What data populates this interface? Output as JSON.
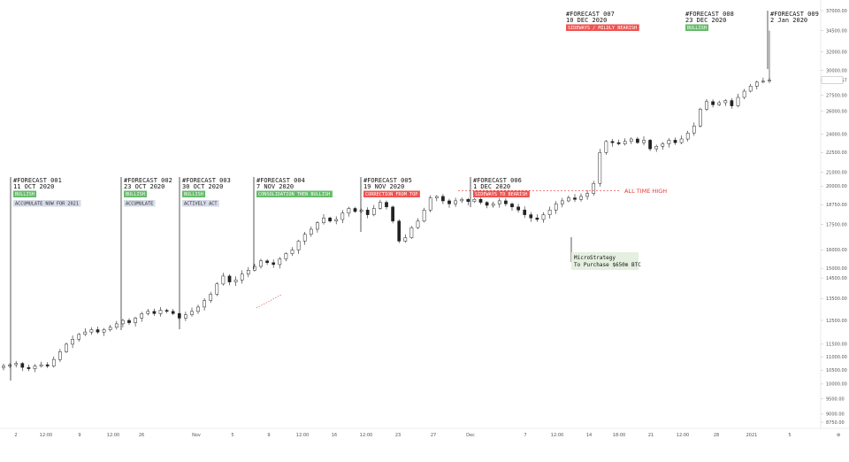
{
  "chart_data": {
    "type": "candlestick",
    "y_scale": "log",
    "y_ticks": [
      "37000.00",
      "34500.00",
      "32000.00",
      "30000.00",
      "29006.57",
      "27500.00",
      "26000.00",
      "24000.00",
      "22500.00",
      "21000.00",
      "20000.00",
      "18750.00",
      "17500.00",
      "16000.00",
      "15000.00",
      "14500.00",
      "13500.00",
      "12500.00",
      "11500.00",
      "11000.00",
      "10500.00",
      "10000.00",
      "9500.00",
      "9000.00",
      "8750.00"
    ],
    "last_price": "29006.57",
    "x_ticks": [
      "2",
      "12:00",
      "9",
      "12:00",
      "26",
      "Nov",
      "5",
      "9",
      "12:00",
      "16",
      "12:00",
      "23",
      "27",
      "Dec",
      "7",
      "12:00",
      "14",
      "18:00",
      "21",
      "12:00",
      "28",
      "2021",
      "5"
    ],
    "annotations": [
      {
        "id": "001",
        "title": "#FORECAST 001",
        "date": "11 OCT 2020",
        "tag": "BULLISH",
        "tag_color": "#66bb6a",
        "note": "ACCUMULATE NOW FOR 2021"
      },
      {
        "id": "002",
        "title": "#FORECAST 002",
        "date": "23 OCT 2020",
        "tag": "BULLISH",
        "tag_color": "#66bb6a",
        "note": "ACCUMULATE"
      },
      {
        "id": "003",
        "title": "#FORECAST 003",
        "date": "30 OCT 2020",
        "tag": "BULLISH",
        "tag_color": "#66bb6a",
        "note": "ACTIVELY ACT"
      },
      {
        "id": "004",
        "title": "#FORECAST 004",
        "date": "7 NOV 2020",
        "tag": "CONSOLIDATION THEN BULLISH",
        "tag_color": "#66bb6a",
        "note": ""
      },
      {
        "id": "005",
        "title": "#FORECAST 005",
        "date": "19 NOV 2020",
        "tag": "CORRECTION FROM TOP",
        "tag_color": "#ef5350",
        "note": ""
      },
      {
        "id": "006",
        "title": "#FORECAST 006",
        "date": "1 DEC 2020",
        "tag": "SIDEWAYS TO BEARISH",
        "tag_color": "#ef5350",
        "note": ""
      },
      {
        "id": "007",
        "title": "#FORECAST 007",
        "date": "10 DEC 2020",
        "tag": "SIDEWAYS / MILDLY BEARISH",
        "tag_color": "#ef5350",
        "note": ""
      },
      {
        "id": "008",
        "title": "#FORECAST 008",
        "date": "23 DEC 2020",
        "tag": "BULLISH",
        "tag_color": "#66bb6a",
        "note": ""
      },
      {
        "id": "009",
        "title": "#FORECAST 009",
        "date": "2 Jan 2020",
        "tag": "",
        "tag_color": "",
        "note": ""
      }
    ],
    "ath_label": "ALL TIME HIGH",
    "callout": {
      "line1": "MicroStrategy",
      "line2": "To Purchase $650m BTC"
    },
    "price_path": [
      [
        0,
        10650
      ],
      [
        1,
        10700
      ],
      [
        2,
        10750
      ],
      [
        3,
        10600
      ],
      [
        4,
        10550
      ],
      [
        5,
        10650
      ],
      [
        6,
        10700
      ],
      [
        7,
        10650
      ],
      [
        8,
        10900
      ],
      [
        9,
        11200
      ],
      [
        10,
        11500
      ],
      [
        11,
        11700
      ],
      [
        12,
        11900
      ],
      [
        13,
        12000
      ],
      [
        14,
        12100
      ],
      [
        15,
        12000
      ],
      [
        16,
        12100
      ],
      [
        17,
        12200
      ],
      [
        18,
        12350
      ],
      [
        19,
        12500
      ],
      [
        20,
        12400
      ],
      [
        21,
        12600
      ],
      [
        22,
        12800
      ],
      [
        23,
        12900
      ],
      [
        24,
        12800
      ],
      [
        25,
        12950
      ],
      [
        26,
        12900
      ],
      [
        27,
        12800
      ],
      [
        28,
        12600
      ],
      [
        29,
        12750
      ],
      [
        30,
        12900
      ],
      [
        31,
        13100
      ],
      [
        32,
        13400
      ],
      [
        33,
        13700
      ],
      [
        34,
        14200
      ],
      [
        35,
        14600
      ],
      [
        36,
        14300
      ],
      [
        37,
        14400
      ],
      [
        38,
        14700
      ],
      [
        39,
        14900
      ],
      [
        40,
        15100
      ],
      [
        41,
        15400
      ],
      [
        42,
        15300
      ],
      [
        43,
        15200
      ],
      [
        44,
        15500
      ],
      [
        45,
        15800
      ],
      [
        46,
        16000
      ],
      [
        47,
        16500
      ],
      [
        48,
        16900
      ],
      [
        49,
        17200
      ],
      [
        50,
        17600
      ],
      [
        51,
        17900
      ],
      [
        52,
        17700
      ],
      [
        53,
        17800
      ],
      [
        54,
        18200
      ],
      [
        55,
        18500
      ],
      [
        56,
        18300
      ],
      [
        57,
        18400
      ],
      [
        58,
        18100
      ],
      [
        59,
        18500
      ],
      [
        60,
        18900
      ],
      [
        61,
        18600
      ],
      [
        62,
        17700
      ],
      [
        63,
        16500
      ],
      [
        64,
        16700
      ],
      [
        65,
        17300
      ],
      [
        66,
        17700
      ],
      [
        67,
        18400
      ],
      [
        68,
        19200
      ],
      [
        69,
        19300
      ],
      [
        70,
        19000
      ],
      [
        71,
        18800
      ],
      [
        72,
        19000
      ],
      [
        73,
        19100
      ],
      [
        74,
        18950
      ],
      [
        75,
        19100
      ],
      [
        76,
        18900
      ],
      [
        77,
        18700
      ],
      [
        78,
        18800
      ],
      [
        79,
        19000
      ],
      [
        80,
        18800
      ],
      [
        81,
        18600
      ],
      [
        82,
        18400
      ],
      [
        83,
        18100
      ],
      [
        84,
        17900
      ],
      [
        85,
        17800
      ],
      [
        86,
        18100
      ],
      [
        87,
        18400
      ],
      [
        88,
        18800
      ],
      [
        89,
        19000
      ],
      [
        90,
        19200
      ],
      [
        91,
        19100
      ],
      [
        92,
        19300
      ],
      [
        93,
        19500
      ],
      [
        94,
        20200
      ],
      [
        95,
        22500
      ],
      [
        96,
        23400
      ],
      [
        97,
        23300
      ],
      [
        98,
        23200
      ],
      [
        99,
        23400
      ],
      [
        100,
        23600
      ],
      [
        101,
        23300
      ],
      [
        102,
        23500
      ],
      [
        103,
        22800
      ],
      [
        104,
        23000
      ],
      [
        105,
        23200
      ],
      [
        106,
        23500
      ],
      [
        107,
        23300
      ],
      [
        108,
        23600
      ],
      [
        109,
        24100
      ],
      [
        110,
        24700
      ],
      [
        111,
        26200
      ],
      [
        112,
        26900
      ],
      [
        113,
        26600
      ],
      [
        114,
        26800
      ],
      [
        115,
        27000
      ],
      [
        116,
        26500
      ],
      [
        117,
        27300
      ],
      [
        118,
        27900
      ],
      [
        119,
        28400
      ],
      [
        120,
        28800
      ],
      [
        121,
        28900
      ],
      [
        122,
        29000
      ]
    ]
  }
}
